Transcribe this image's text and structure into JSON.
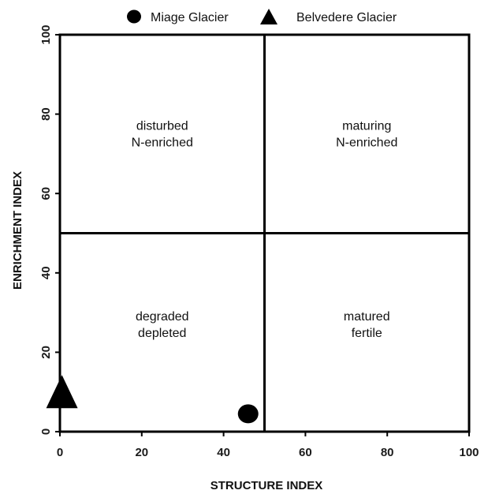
{
  "chart_data": {
    "type": "scatter",
    "title": "",
    "xlabel": "STRUCTURE INDEX",
    "ylabel": "ENRICHMENT INDEX",
    "xlim": [
      0,
      100
    ],
    "ylim": [
      0,
      100
    ],
    "xticks": [
      "0",
      "20",
      "40",
      "60",
      "80",
      "100"
    ],
    "yticks": [
      "0",
      "20",
      "40",
      "60",
      "80",
      "100"
    ],
    "grid": false,
    "legend_position": "top",
    "divider_lines": {
      "x": 50,
      "y": 50
    },
    "quadrants": [
      {
        "id": "top-left",
        "line1": "disturbed",
        "line2": "N-enriched",
        "x": 25,
        "y": 76
      },
      {
        "id": "top-right",
        "line1": "maturing",
        "line2": "N-enriched",
        "x": 75,
        "y": 76
      },
      {
        "id": "bottom-left",
        "line1": "degraded",
        "line2": "depleted",
        "x": 25,
        "y": 28
      },
      {
        "id": "bottom-right",
        "line1": "matured",
        "line2": "fertile",
        "x": 75,
        "y": 28
      }
    ],
    "series": [
      {
        "name": "Miage Glacier",
        "marker": "circle",
        "color": "#000000",
        "points": [
          {
            "x": 46,
            "y": 4.5
          }
        ]
      },
      {
        "name": "Belvedere Glacier",
        "marker": "triangle",
        "color": "#000000",
        "points": [
          {
            "x": 0.5,
            "y": 8.5
          }
        ]
      }
    ]
  }
}
